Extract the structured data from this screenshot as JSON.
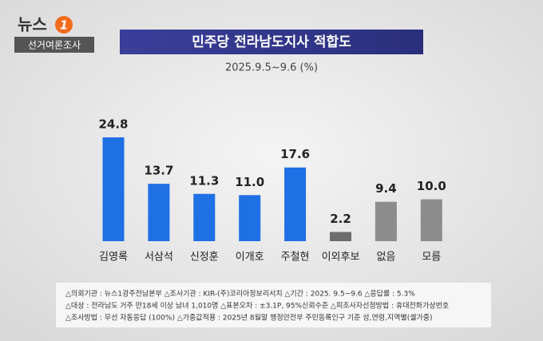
{
  "header": {
    "brand": "뉴스",
    "brand_number": "1",
    "section": "선거여론조사"
  },
  "chart_data": {
    "type": "bar",
    "title": "민주당 전라남도지사 적합도",
    "subtitle": "2025.9.5~9.6 (%)",
    "categories": [
      "김영록",
      "서삼석",
      "신정훈",
      "이개호",
      "주철현",
      "이외후보",
      "없음",
      "모름"
    ],
    "values": [
      24.8,
      13.7,
      11.3,
      11.0,
      17.6,
      2.2,
      9.4,
      10.0
    ],
    "value_labels": [
      "24.8",
      "13.7",
      "11.3",
      "11.0",
      "17.6",
      "2.2",
      "9.4",
      "10.0"
    ],
    "colors": [
      "#1f6fe5",
      "#1f6fe5",
      "#1f6fe5",
      "#1f6fe5",
      "#1f6fe5",
      "#6d6d6d",
      "#8c8c8c",
      "#8c8c8c"
    ]
  },
  "footnotes": [
    "△의뢰기관 : 뉴스1광주전남본부 △조사기관 : KIR-(주)코리아정보리서치 △기간 : 2025. 9.5~9.6 △응답률 : 5.3%",
    "△대상 : 전라남도 거주 만18세 이상 남녀 1,010명 △표본오차 : ±3.1P, 95%신뢰수준 △피조사자선정방법 : 휴대전화가상번호",
    "△조사방법 : 무선 자동응답 (100%) △가중값적용 : 2025년 8월말 행정안전부 주민등록인구 기준 성,연령,지역별(셀가중)"
  ]
}
